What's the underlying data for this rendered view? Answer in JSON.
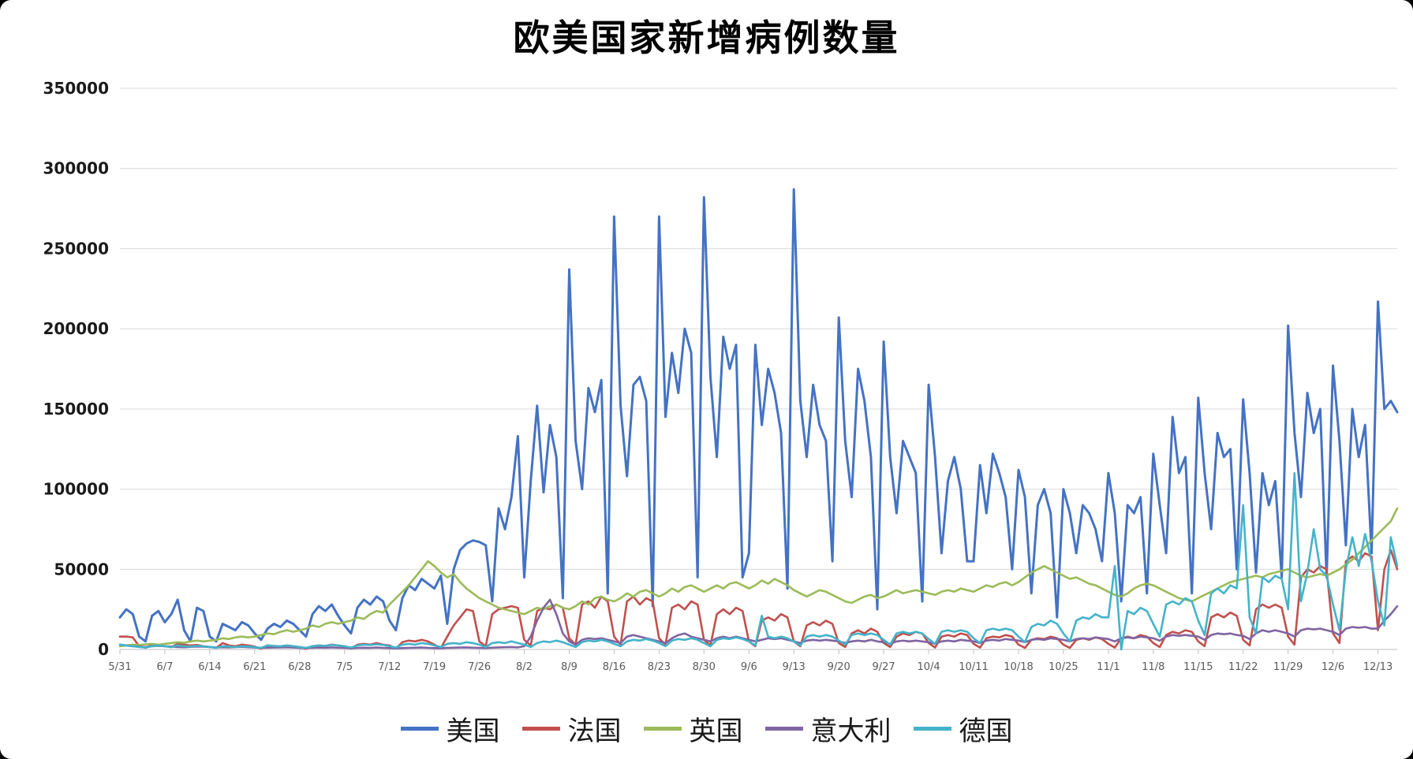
{
  "chart_data": {
    "type": "line",
    "title": "欧美国家新增病例数量",
    "xlabel": "",
    "ylabel": "",
    "ylim": [
      0,
      350000
    ],
    "y_ticks": [
      0,
      50000,
      100000,
      150000,
      200000,
      250000,
      300000,
      350000
    ],
    "grid": true,
    "legend_position": "bottom",
    "x_tick_interval": 7,
    "x_tick_labels": [
      "5/31",
      "6/7",
      "6/14",
      "6/21",
      "6/28",
      "7/5",
      "7/12",
      "7/19",
      "7/26",
      "8/2",
      "8/9",
      "8/16",
      "8/23",
      "8/30",
      "9/6",
      "9/13",
      "9/20",
      "9/27",
      "10/4",
      "10/11",
      "10/18",
      "10/25",
      "11/1",
      "11/8",
      "11/15",
      "11/22",
      "11/29",
      "12/6",
      "12/13"
    ],
    "series": [
      {
        "key": "usa",
        "name": "美国",
        "color": "#4472C4",
        "values": [
          20000,
          25000,
          22000,
          8000,
          5000,
          21000,
          24000,
          17000,
          22000,
          31000,
          12000,
          5000,
          26000,
          24000,
          8000,
          5000,
          16000,
          14000,
          12000,
          17000,
          15000,
          10000,
          6000,
          13000,
          16000,
          14000,
          18000,
          16000,
          12000,
          8000,
          22000,
          27000,
          24000,
          28000,
          21000,
          15000,
          10000,
          26000,
          31000,
          28000,
          33000,
          30000,
          18000,
          12000,
          32000,
          40000,
          37000,
          44000,
          41000,
          38000,
          46000,
          16000,
          50000,
          62000,
          66000,
          68000,
          67000,
          65000,
          30000,
          88000,
          75000,
          95000,
          133000,
          45000,
          105000,
          152000,
          98000,
          140000,
          120000,
          32000,
          237000,
          130000,
          100000,
          163000,
          148000,
          168000,
          35000,
          270000,
          152000,
          108000,
          165000,
          170000,
          155000,
          27000,
          270000,
          145000,
          185000,
          160000,
          200000,
          185000,
          45000,
          282000,
          170000,
          120000,
          195000,
          175000,
          190000,
          45000,
          60000,
          190000,
          140000,
          175000,
          160000,
          135000,
          38000,
          287000,
          155000,
          120000,
          165000,
          140000,
          130000,
          55000,
          207000,
          130000,
          95000,
          175000,
          155000,
          120000,
          25000,
          192000,
          120000,
          85000,
          130000,
          120000,
          110000,
          30000,
          165000,
          120000,
          60000,
          105000,
          120000,
          100000,
          55000,
          55000,
          115000,
          85000,
          122000,
          110000,
          95000,
          50000,
          112000,
          95000,
          35000,
          90000,
          100000,
          85000,
          20000,
          100000,
          85000,
          60000,
          90000,
          85000,
          75000,
          55000,
          110000,
          85000,
          30000,
          90000,
          85000,
          95000,
          35000,
          122000,
          90000,
          60000,
          145000,
          110000,
          120000,
          35000,
          157000,
          110000,
          75000,
          135000,
          120000,
          125000,
          50000,
          156000,
          110000,
          48000,
          110000,
          90000,
          105000,
          45000,
          202000,
          135000,
          95000,
          160000,
          135000,
          150000,
          45000,
          177000,
          130000,
          65000,
          150000,
          120000,
          140000,
          60000,
          217000,
          150000,
          155000,
          148000
        ]
      },
      {
        "key": "france",
        "name": "法国",
        "color": "#C0504D",
        "values": [
          8000,
          8000,
          7500,
          2000,
          1000,
          3000,
          2500,
          2000,
          1500,
          3500,
          3000,
          2500,
          2800,
          2000,
          1500,
          1000,
          4000,
          2500,
          2000,
          3000,
          2500,
          1800,
          500,
          2500,
          2000,
          1800,
          2500,
          2000,
          1500,
          400,
          2000,
          2500,
          2200,
          3000,
          2500,
          2000,
          500,
          3000,
          3500,
          3000,
          4000,
          3000,
          2500,
          600,
          4500,
          5500,
          5000,
          6000,
          5000,
          3000,
          1000,
          8000,
          15000,
          20000,
          25000,
          24000,
          5000,
          2000,
          22000,
          25000,
          26000,
          27000,
          26000,
          6000,
          2500,
          24000,
          26000,
          25000,
          28000,
          26000,
          7000,
          3000,
          28000,
          30000,
          26000,
          33000,
          30000,
          8000,
          3000,
          30000,
          33000,
          28000,
          32000,
          30000,
          7000,
          3000,
          26000,
          28000,
          25000,
          30000,
          28000,
          6000,
          2500,
          22000,
          25000,
          22000,
          26000,
          24000,
          5000,
          2000,
          18000,
          20000,
          18000,
          22000,
          20000,
          5000,
          2000,
          15000,
          17000,
          15000,
          18000,
          16000,
          4000,
          1500,
          10000,
          12000,
          10000,
          13000,
          11000,
          4000,
          1500,
          8000,
          10000,
          9000,
          11000,
          10000,
          4000,
          1200,
          8000,
          9000,
          8000,
          10000,
          9000,
          3500,
          1200,
          7000,
          8000,
          7500,
          9000,
          8000,
          3000,
          1000,
          6000,
          7000,
          6500,
          8000,
          7000,
          3000,
          1000,
          6000,
          7000,
          6000,
          7500,
          6500,
          3500,
          1200,
          7000,
          8000,
          7000,
          9000,
          8000,
          4000,
          1500,
          9000,
          11000,
          10000,
          12000,
          11000,
          5000,
          2000,
          20000,
          22000,
          20000,
          23000,
          21000,
          6000,
          2500,
          25000,
          28000,
          26000,
          28000,
          26000,
          8000,
          3000,
          45000,
          50000,
          48000,
          52000,
          50000,
          10000,
          4000,
          55000,
          58000,
          55000,
          60000,
          58000,
          12000,
          50000,
          62000,
          50000
        ]
      },
      {
        "key": "uk",
        "name": "英国",
        "color": "#9BBB59",
        "values": [
          2000,
          2500,
          3000,
          2800,
          3200,
          3500,
          3000,
          3500,
          4000,
          4500,
          4200,
          5000,
          5500,
          5000,
          5500,
          6000,
          7000,
          6500,
          7500,
          8000,
          7500,
          8000,
          9000,
          10000,
          9500,
          11000,
          12000,
          11000,
          12000,
          13000,
          15000,
          14000,
          16000,
          17000,
          16000,
          17000,
          18000,
          20000,
          19000,
          22000,
          24000,
          23000,
          28000,
          32000,
          36000,
          40000,
          45000,
          50000,
          55000,
          52000,
          48000,
          45000,
          47000,
          42000,
          38000,
          35000,
          32000,
          30000,
          28000,
          26000,
          25000,
          24000,
          23000,
          22000,
          24000,
          26000,
          25000,
          27000,
          28000,
          26000,
          25000,
          27000,
          30000,
          28000,
          32000,
          33000,
          31000,
          30000,
          32000,
          35000,
          33000,
          36000,
          37000,
          35000,
          33000,
          35000,
          38000,
          36000,
          39000,
          40000,
          38000,
          36000,
          38000,
          40000,
          38000,
          41000,
          42000,
          40000,
          38000,
          40000,
          43000,
          41000,
          44000,
          42000,
          40000,
          37000,
          35000,
          33000,
          35000,
          37000,
          36000,
          34000,
          32000,
          30000,
          29000,
          31000,
          33000,
          34000,
          32000,
          33000,
          35000,
          37000,
          35000,
          36000,
          37000,
          36000,
          35000,
          34000,
          36000,
          37000,
          36000,
          38000,
          37000,
          36000,
          38000,
          40000,
          39000,
          41000,
          42000,
          40000,
          42000,
          45000,
          48000,
          50000,
          52000,
          50000,
          48000,
          46000,
          44000,
          45000,
          43000,
          41000,
          40000,
          38000,
          36000,
          34000,
          33000,
          35000,
          38000,
          40000,
          41000,
          40000,
          38000,
          36000,
          34000,
          32000,
          31000,
          30000,
          32000,
          34000,
          36000,
          38000,
          40000,
          42000,
          43000,
          44000,
          45000,
          46000,
          45000,
          47000,
          48000,
          49000,
          50000,
          48000,
          46000,
          45000,
          46000,
          47000,
          46000,
          48000,
          50000,
          53000,
          56000,
          60000,
          64000,
          68000,
          72000,
          76000,
          80000,
          88000
        ]
      },
      {
        "key": "italy",
        "name": "意大利",
        "color": "#8064A2",
        "values": [
          3000,
          2500,
          2000,
          1800,
          1500,
          2000,
          2200,
          2000,
          1800,
          1500,
          1400,
          1600,
          1800,
          1700,
          1500,
          1200,
          1400,
          1300,
          1500,
          1600,
          1400,
          1200,
          1000,
          1100,
          1200,
          1300,
          1400,
          1200,
          1000,
          900,
          1100,
          1200,
          1100,
          1300,
          1100,
          1000,
          800,
          1000,
          1100,
          1000,
          1200,
          1000,
          900,
          700,
          900,
          1000,
          1100,
          1200,
          1000,
          900,
          800,
          1000,
          1100,
          1200,
          1300,
          1100,
          1000,
          900,
          1100,
          1300,
          1400,
          1500,
          1300,
          2000,
          8000,
          18000,
          26000,
          31000,
          22000,
          10000,
          5000,
          3000,
          6000,
          7000,
          6500,
          7000,
          6000,
          5000,
          4000,
          8000,
          9000,
          8000,
          7000,
          6000,
          5000,
          4000,
          7000,
          9000,
          10000,
          8000,
          7000,
          6000,
          5000,
          7000,
          8000,
          7000,
          8000,
          7000,
          6000,
          5000,
          6000,
          7000,
          6500,
          7000,
          6000,
          5000,
          4000,
          5500,
          6000,
          5500,
          6000,
          5500,
          5000,
          4000,
          5000,
          5500,
          5000,
          6000,
          5000,
          4500,
          3500,
          5000,
          5500,
          5000,
          5500,
          5000,
          4500,
          3500,
          5000,
          5500,
          5000,
          6000,
          5500,
          5000,
          4000,
          5500,
          6000,
          5500,
          6500,
          6000,
          5500,
          4500,
          6000,
          6500,
          6000,
          7000,
          6500,
          6000,
          5000,
          6500,
          7000,
          6500,
          7500,
          7000,
          6500,
          5000,
          7000,
          7500,
          7000,
          8000,
          7500,
          7000,
          5500,
          8000,
          9000,
          8500,
          9000,
          8500,
          8000,
          6000,
          9000,
          10000,
          9500,
          10000,
          9000,
          8500,
          6500,
          10000,
          12000,
          11000,
          12000,
          11000,
          10000,
          8000,
          12000,
          13000,
          12500,
          13000,
          12000,
          11000,
          9000,
          13000,
          14000,
          13500,
          14000,
          13000,
          13000,
          18000,
          22000,
          27000
        ]
      },
      {
        "key": "germany",
        "name": "德国",
        "color": "#44B3C9",
        "values": [
          3000,
          2500,
          2000,
          1500,
          1200,
          2000,
          2500,
          2000,
          1500,
          2500,
          2000,
          1800,
          2200,
          2000,
          1500,
          1000,
          2000,
          1800,
          1500,
          2000,
          1800,
          1500,
          1000,
          2500,
          2200,
          2000,
          2500,
          2000,
          1500,
          1000,
          2000,
          2500,
          2200,
          2800,
          2500,
          2000,
          1200,
          2500,
          3000,
          2800,
          3200,
          2800,
          2000,
          1200,
          3000,
          3500,
          3000,
          4000,
          3500,
          2500,
          1500,
          3500,
          4000,
          3500,
          4500,
          4000,
          3000,
          1500,
          4000,
          4500,
          4000,
          5000,
          4000,
          3000,
          1500,
          4000,
          5000,
          4500,
          5500,
          4500,
          3000,
          1500,
          4500,
          5500,
          5000,
          6000,
          5000,
          3500,
          2000,
          5000,
          6000,
          5500,
          6500,
          5500,
          4000,
          2000,
          5500,
          6500,
          6000,
          7000,
          6000,
          4000,
          2000,
          6000,
          7000,
          6500,
          7500,
          6500,
          5000,
          2500,
          21000,
          8000,
          7000,
          8000,
          7000,
          5000,
          2500,
          8000,
          9000,
          8000,
          9000,
          8000,
          5500,
          3000,
          9000,
          10000,
          9000,
          10000,
          9000,
          6000,
          3000,
          10000,
          11000,
          10000,
          11000,
          10000,
          6500,
          3500,
          11000,
          12000,
          11000,
          12000,
          11000,
          7000,
          4000,
          12000,
          13000,
          12000,
          13000,
          12000,
          8000,
          4500,
          14000,
          16000,
          15000,
          18000,
          16000,
          10000,
          5000,
          18000,
          20000,
          19000,
          22000,
          20000,
          20000,
          52000,
          0,
          24000,
          22000,
          26000,
          24000,
          16000,
          8000,
          28000,
          30000,
          28000,
          32000,
          30000,
          18000,
          9000,
          35000,
          38000,
          35000,
          40000,
          38000,
          90000,
          20000,
          10000,
          45000,
          42000,
          46000,
          44000,
          25000,
          110000,
          30000,
          48000,
          75000,
          50000,
          46000,
          28000,
          12000,
          50000,
          70000,
          52000,
          72000,
          55000,
          30000,
          15000,
          70000,
          52000
        ]
      }
    ]
  }
}
